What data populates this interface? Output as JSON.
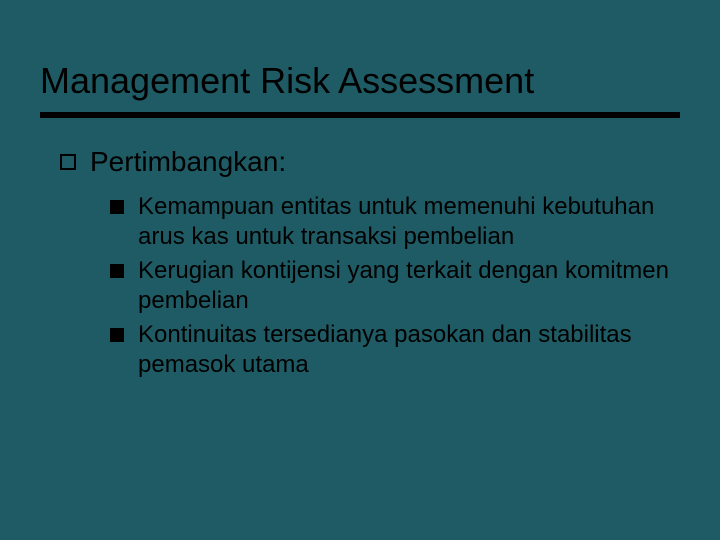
{
  "slide": {
    "title": "Management Risk Assessment",
    "background_color": "#1f5b64",
    "title_fontsize": 36,
    "title_color": "#000000",
    "underline_color": "#000000",
    "underline_height": 6,
    "level1": {
      "text": "Pertimbangkan:",
      "fontsize": 28,
      "bullet_type": "hollow-square",
      "bullet_color": "#000000"
    },
    "level2_items": [
      "Kemampuan entitas untuk memenuhi kebutuhan arus kas untuk transaksi pembelian",
      "Kerugian kontijensi yang terkait dengan komitmen pembelian",
      "Kontinuitas tersedianya pasokan dan stabilitas pemasok utama"
    ],
    "level2_style": {
      "fontsize": 24,
      "bullet_type": "filled-square",
      "bullet_color": "#000000"
    }
  }
}
